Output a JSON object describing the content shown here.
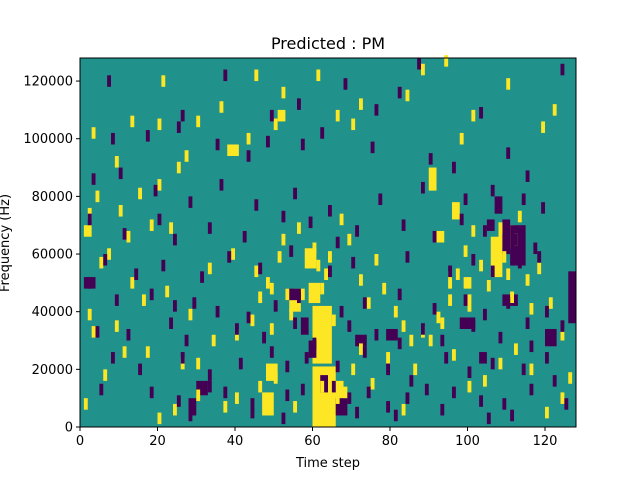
{
  "chart_data": {
    "type": "heatmap",
    "title": "Predicted : PM",
    "xlabel": "Time step",
    "ylabel": "Frequency (Hz)",
    "xlim": [
      0,
      128
    ],
    "ylim": [
      0,
      128000
    ],
    "x_ticks": [
      0,
      20,
      40,
      60,
      80,
      100,
      120
    ],
    "y_ticks": [
      0,
      20000,
      40000,
      60000,
      80000,
      100000,
      120000
    ],
    "x_tick_labels": [
      "0",
      "20",
      "40",
      "60",
      "80",
      "100",
      "120"
    ],
    "y_tick_labels": [
      "0",
      "20000",
      "40000",
      "60000",
      "80000",
      "100000",
      "120000"
    ],
    "time_steps": 128,
    "freq_bins": 128,
    "bin_hz": 1000,
    "value_levels": [
      -1,
      0,
      1
    ],
    "colors": {
      "low": "#440154",
      "mid": "#21918c",
      "high": "#fde725"
    },
    "grid": false,
    "cells": [
      [
        1,
        6000,
        1
      ],
      [
        6,
        16000,
        1
      ],
      [
        11,
        24000,
        1
      ],
      [
        17,
        24000,
        1
      ],
      [
        26,
        20000,
        1
      ],
      [
        3,
        31000,
        1
      ],
      [
        9,
        33000,
        1
      ],
      [
        13,
        48000,
        1
      ],
      [
        16,
        42000,
        1
      ],
      [
        22,
        45000,
        1
      ],
      [
        28,
        37000,
        1
      ],
      [
        33,
        53000,
        1
      ],
      [
        39,
        58000,
        1
      ],
      [
        45,
        52000,
        1
      ],
      [
        49,
        46000,
        1
      ],
      [
        54,
        37000,
        1
      ],
      [
        2,
        37000,
        1
      ],
      [
        5,
        55000,
        1
      ],
      [
        7,
        58000,
        1
      ],
      [
        12,
        64000,
        1
      ],
      [
        18,
        68000,
        1
      ],
      [
        23,
        67000,
        1
      ],
      [
        2,
        72000,
        1
      ],
      [
        4,
        78000,
        1
      ],
      [
        10,
        73000,
        1
      ],
      [
        15,
        79000,
        1
      ],
      [
        20,
        82000,
        1
      ],
      [
        25,
        88000,
        1
      ],
      [
        27,
        92000,
        1
      ],
      [
        9,
        90000,
        1
      ],
      [
        3,
        100000,
        1
      ],
      [
        13,
        104000,
        1
      ],
      [
        20,
        103000,
        1
      ],
      [
        30,
        104000,
        1
      ],
      [
        36,
        109000,
        1
      ],
      [
        43,
        98000,
        1
      ],
      [
        50,
        103000,
        1
      ],
      [
        21,
        118000,
        1
      ],
      [
        45,
        120000,
        1
      ],
      [
        52,
        114000,
        1
      ],
      [
        61,
        120000,
        1
      ],
      [
        66,
        106000,
        1
      ],
      [
        70,
        103000,
        1
      ],
      [
        72,
        110000,
        1
      ],
      [
        84,
        113000,
        1
      ],
      [
        88,
        122000,
        1
      ],
      [
        94,
        125000,
        1
      ],
      [
        98,
        98000,
        1
      ],
      [
        101,
        106000,
        1
      ],
      [
        110,
        117000,
        1
      ],
      [
        119,
        102000,
        1
      ],
      [
        122,
        108000,
        1
      ],
      [
        20,
        1000,
        1
      ],
      [
        24,
        4000,
        1
      ],
      [
        30,
        9000,
        1
      ],
      [
        37,
        5000,
        1
      ],
      [
        40,
        8000,
        1
      ],
      [
        46,
        12000,
        1
      ],
      [
        50,
        15000,
        1
      ],
      [
        55,
        5000,
        1
      ],
      [
        60,
        7000,
        1
      ],
      [
        62,
        12000,
        1
      ],
      [
        64,
        16000,
        1
      ],
      [
        66,
        8000,
        1
      ],
      [
        68,
        10000,
        1
      ],
      [
        70,
        18000,
        1
      ],
      [
        72,
        25000,
        1
      ],
      [
        75,
        13000,
        1
      ],
      [
        79,
        22000,
        1
      ],
      [
        83,
        4000,
        1
      ],
      [
        86,
        18000,
        1
      ],
      [
        90,
        28000,
        1
      ],
      [
        93,
        34000,
        1
      ],
      [
        96,
        23000,
        1
      ],
      [
        100,
        12000,
        1
      ],
      [
        104,
        14000,
        1
      ],
      [
        108,
        20000,
        1
      ],
      [
        112,
        25000,
        1
      ],
      [
        116,
        18000,
        1
      ],
      [
        120,
        3000,
        1
      ],
      [
        124,
        8000,
        1
      ],
      [
        126,
        15000,
        1
      ],
      [
        30,
        20000,
        1
      ],
      [
        34,
        28000,
        1
      ],
      [
        40,
        30000,
        1
      ],
      [
        44,
        35000,
        1
      ],
      [
        46,
        43000,
        1
      ],
      [
        48,
        48000,
        1
      ],
      [
        49,
        32000,
        1
      ],
      [
        51,
        57000,
        1
      ],
      [
        52,
        63000,
        1
      ],
      [
        53,
        44000,
        1
      ],
      [
        56,
        67000,
        1
      ],
      [
        60,
        60000,
        1
      ],
      [
        61,
        54000,
        1
      ],
      [
        62,
        46000,
        1
      ],
      [
        63,
        51000,
        1
      ],
      [
        64,
        57000,
        1
      ],
      [
        65,
        35000,
        1
      ],
      [
        67,
        70000,
        1
      ],
      [
        69,
        63000,
        1
      ],
      [
        72,
        49000,
        1
      ],
      [
        74,
        41000,
        1
      ],
      [
        76,
        56000,
        1
      ],
      [
        78,
        46000,
        1
      ],
      [
        81,
        38000,
        1
      ],
      [
        83,
        33000,
        1
      ],
      [
        85,
        28000,
        1
      ],
      [
        88,
        31000,
        1
      ],
      [
        92,
        36000,
        1
      ],
      [
        95,
        42000,
        1
      ],
      [
        97,
        51000,
        1
      ],
      [
        99,
        59000,
        1
      ],
      [
        101,
        66000,
        1
      ],
      [
        103,
        54000,
        1
      ],
      [
        105,
        47000,
        1
      ],
      [
        107,
        60000,
        1
      ],
      [
        108,
        67000,
        1
      ],
      [
        109,
        57000,
        1
      ],
      [
        110,
        51000,
        1
      ],
      [
        111,
        43000,
        1
      ],
      [
        112,
        63000,
        1
      ],
      [
        113,
        71000,
        1
      ],
      [
        115,
        49000,
        1
      ],
      [
        116,
        39000,
        1
      ],
      [
        118,
        53000,
        1
      ],
      [
        121,
        41000,
        1
      ],
      [
        124,
        30000,
        1
      ],
      [
        7,
        118000,
        -1
      ],
      [
        26,
        106000,
        -1
      ],
      [
        37,
        120000,
        -1
      ],
      [
        49,
        106000,
        -1
      ],
      [
        56,
        110000,
        -1
      ],
      [
        68,
        117000,
        -1
      ],
      [
        76,
        108000,
        -1
      ],
      [
        82,
        114000,
        -1
      ],
      [
        87,
        124000,
        -1
      ],
      [
        103,
        107000,
        -1
      ],
      [
        124,
        122000,
        -1
      ],
      [
        8,
        98000,
        -1
      ],
      [
        17,
        99000,
        -1
      ],
      [
        25,
        102000,
        -1
      ],
      [
        35,
        96000,
        -1
      ],
      [
        43,
        92000,
        -1
      ],
      [
        48,
        97000,
        -1
      ],
      [
        57,
        96000,
        -1
      ],
      [
        62,
        100000,
        -1
      ],
      [
        75,
        95000,
        -1
      ],
      [
        90,
        91000,
        -1
      ],
      [
        96,
        88000,
        -1
      ],
      [
        110,
        93000,
        -1
      ],
      [
        115,
        85000,
        -1
      ],
      [
        3,
        84000,
        -1
      ],
      [
        10,
        86000,
        -1
      ],
      [
        19,
        80000,
        -1
      ],
      [
        28,
        76000,
        -1
      ],
      [
        36,
        82000,
        -1
      ],
      [
        45,
        75000,
        -1
      ],
      [
        55,
        79000,
        -1
      ],
      [
        64,
        73000,
        -1
      ],
      [
        77,
        77000,
        -1
      ],
      [
        88,
        81000,
        -1
      ],
      [
        99,
        77000,
        -1
      ],
      [
        106,
        80000,
        -1
      ],
      [
        114,
        77000,
        -1
      ],
      [
        119,
        74000,
        -1
      ],
      [
        2,
        70000,
        -1
      ],
      [
        11,
        65000,
        -1
      ],
      [
        20,
        70000,
        -1
      ],
      [
        24,
        63000,
        -1
      ],
      [
        33,
        67000,
        -1
      ],
      [
        42,
        64000,
        -1
      ],
      [
        52,
        71000,
        -1
      ],
      [
        59,
        69000,
        -1
      ],
      [
        66,
        62000,
        -1
      ],
      [
        71,
        66000,
        -1
      ],
      [
        83,
        68000,
        -1
      ],
      [
        91,
        64000,
        -1
      ],
      [
        98,
        70000,
        -1
      ],
      [
        104,
        66000,
        -1
      ],
      [
        112,
        63000,
        -1
      ],
      [
        117,
        60000,
        -1
      ],
      [
        6,
        56000,
        -1
      ],
      [
        14,
        51000,
        -1
      ],
      [
        21,
        54000,
        -1
      ],
      [
        31,
        50000,
        -1
      ],
      [
        38,
        57000,
        -1
      ],
      [
        46,
        53000,
        -1
      ],
      [
        54,
        59000,
        -1
      ],
      [
        64,
        52000,
        -1
      ],
      [
        70,
        55000,
        -1
      ],
      [
        84,
        57000,
        -1
      ],
      [
        95,
        52000,
        -1
      ],
      [
        101,
        56000,
        -1
      ],
      [
        106,
        52000,
        -1
      ],
      [
        113,
        55000,
        -1
      ],
      [
        118,
        57000,
        -1
      ],
      [
        2,
        48000,
        -1
      ],
      [
        9,
        42000,
        -1
      ],
      [
        18,
        44000,
        -1
      ],
      [
        24,
        40000,
        -1
      ],
      [
        29,
        41000,
        -1
      ],
      [
        35,
        38000,
        -1
      ],
      [
        43,
        36000,
        -1
      ],
      [
        50,
        40000,
        -1
      ],
      [
        56,
        43000,
        -1
      ],
      [
        67,
        38000,
        -1
      ],
      [
        73,
        41000,
        -1
      ],
      [
        82,
        44000,
        -1
      ],
      [
        91,
        39000,
        -1
      ],
      [
        99,
        42000,
        -1
      ],
      [
        104,
        37000,
        -1
      ],
      [
        110,
        41000,
        -1
      ],
      [
        115,
        34000,
        -1
      ],
      [
        120,
        38000,
        -1
      ],
      [
        4,
        31000,
        -1
      ],
      [
        12,
        30000,
        -1
      ],
      [
        23,
        34000,
        -1
      ],
      [
        27,
        28000,
        -1
      ],
      [
        40,
        32000,
        -1
      ],
      [
        47,
        29000,
        -1
      ],
      [
        55,
        34000,
        -1
      ],
      [
        60,
        27000,
        -1
      ],
      [
        69,
        33000,
        -1
      ],
      [
        76,
        30000,
        -1
      ],
      [
        82,
        27000,
        -1
      ],
      [
        88,
        32000,
        -1
      ],
      [
        93,
        28000,
        -1
      ],
      [
        101,
        33000,
        -1
      ],
      [
        108,
        29000,
        -1
      ],
      [
        116,
        26000,
        -1
      ],
      [
        124,
        33000,
        -1
      ],
      [
        8,
        22000,
        -1
      ],
      [
        15,
        18000,
        -1
      ],
      [
        26,
        22000,
        -1
      ],
      [
        33,
        16000,
        -1
      ],
      [
        41,
        20000,
        -1
      ],
      [
        49,
        24000,
        -1
      ],
      [
        53,
        19000,
        -1
      ],
      [
        58,
        22000,
        -1
      ],
      [
        66,
        19000,
        -1
      ],
      [
        73,
        24000,
        -1
      ],
      [
        79,
        18000,
        -1
      ],
      [
        85,
        14000,
        -1
      ],
      [
        94,
        22000,
        -1
      ],
      [
        100,
        17000,
        -1
      ],
      [
        106,
        20000,
        -1
      ],
      [
        114,
        18000,
        -1
      ],
      [
        120,
        22000,
        -1
      ],
      [
        5,
        11000,
        -1
      ],
      [
        18,
        10000,
        -1
      ],
      [
        25,
        7000,
        -1
      ],
      [
        33,
        12000,
        -1
      ],
      [
        37,
        10000,
        -1
      ],
      [
        44,
        6000,
        -1
      ],
      [
        53,
        9000,
        -1
      ],
      [
        57,
        11000,
        -1
      ],
      [
        65,
        12000,
        -1
      ],
      [
        69,
        8000,
        -1
      ],
      [
        74,
        10000,
        -1
      ],
      [
        79,
        5000,
        -1
      ],
      [
        84,
        8000,
        -1
      ],
      [
        89,
        11000,
        -1
      ],
      [
        96,
        10000,
        -1
      ],
      [
        103,
        7000,
        -1
      ],
      [
        109,
        6000,
        -1
      ],
      [
        116,
        11000,
        -1
      ],
      [
        122,
        14000,
        -1
      ],
      [
        28,
        2000,
        -1
      ],
      [
        44,
        3000,
        -1
      ],
      [
        52,
        1000,
        -1
      ],
      [
        71,
        3000,
        -1
      ],
      [
        81,
        2000,
        -1
      ],
      [
        93,
        4000,
        -1
      ],
      [
        105,
        1000,
        -1
      ],
      [
        111,
        2000,
        -1
      ],
      [
        125,
        6000,
        -1
      ]
    ],
    "blocks": [
      [
        60,
        66,
        0,
        21000,
        1
      ],
      [
        60,
        65,
        22000,
        42000,
        1
      ],
      [
        59,
        62,
        43000,
        50000,
        1
      ],
      [
        58,
        61,
        55000,
        62000,
        1
      ],
      [
        47,
        50,
        4000,
        12000,
        1
      ],
      [
        48,
        51,
        16000,
        22000,
        1
      ],
      [
        106,
        109,
        52000,
        66000,
        1
      ],
      [
        108,
        112,
        62000,
        70000,
        1
      ],
      [
        99,
        101,
        48000,
        52000,
        1
      ],
      [
        92,
        94,
        64000,
        68000,
        1
      ],
      [
        38,
        41,
        94000,
        98000,
        1
      ],
      [
        55,
        58,
        44000,
        48000,
        1
      ],
      [
        65,
        68,
        8000,
        16000,
        1
      ],
      [
        60,
        63,
        2000,
        8000,
        1
      ],
      [
        54,
        57,
        40000,
        46000,
        1
      ],
      [
        66,
        69,
        4000,
        10000,
        -1
      ],
      [
        109,
        113,
        42000,
        46000,
        -1
      ],
      [
        111,
        115,
        56000,
        70000,
        -1
      ],
      [
        109,
        111,
        60000,
        72000,
        -1
      ],
      [
        57,
        59,
        32000,
        38000,
        -1
      ],
      [
        53,
        57,
        44000,
        48000,
        -1
      ],
      [
        105,
        107,
        68000,
        72000,
        -1
      ],
      [
        107,
        109,
        74000,
        80000,
        -1
      ],
      [
        28,
        30,
        4000,
        10000,
        -1
      ],
      [
        30,
        33,
        11000,
        16000,
        -1
      ],
      [
        1,
        4,
        48000,
        52000,
        -1
      ],
      [
        126,
        128,
        36000,
        54000,
        -1
      ],
      [
        98,
        102,
        34000,
        38000,
        -1
      ],
      [
        103,
        105,
        22000,
        26000,
        -1
      ],
      [
        79,
        82,
        30000,
        34000,
        -1
      ],
      [
        71,
        74,
        28000,
        32000,
        -1
      ],
      [
        59,
        61,
        24000,
        30000,
        -1
      ],
      [
        62,
        64,
        12000,
        18000,
        -1
      ],
      [
        90,
        92,
        82000,
        90000,
        1
      ],
      [
        96,
        98,
        72000,
        78000,
        1
      ],
      [
        95,
        96,
        48000,
        54000,
        1
      ],
      [
        100,
        101,
        40000,
        46000,
        1
      ],
      [
        120,
        123,
        28000,
        34000,
        -1
      ],
      [
        1,
        3,
        66000,
        70000,
        1
      ],
      [
        51,
        53,
        106000,
        110000,
        1
      ]
    ]
  }
}
